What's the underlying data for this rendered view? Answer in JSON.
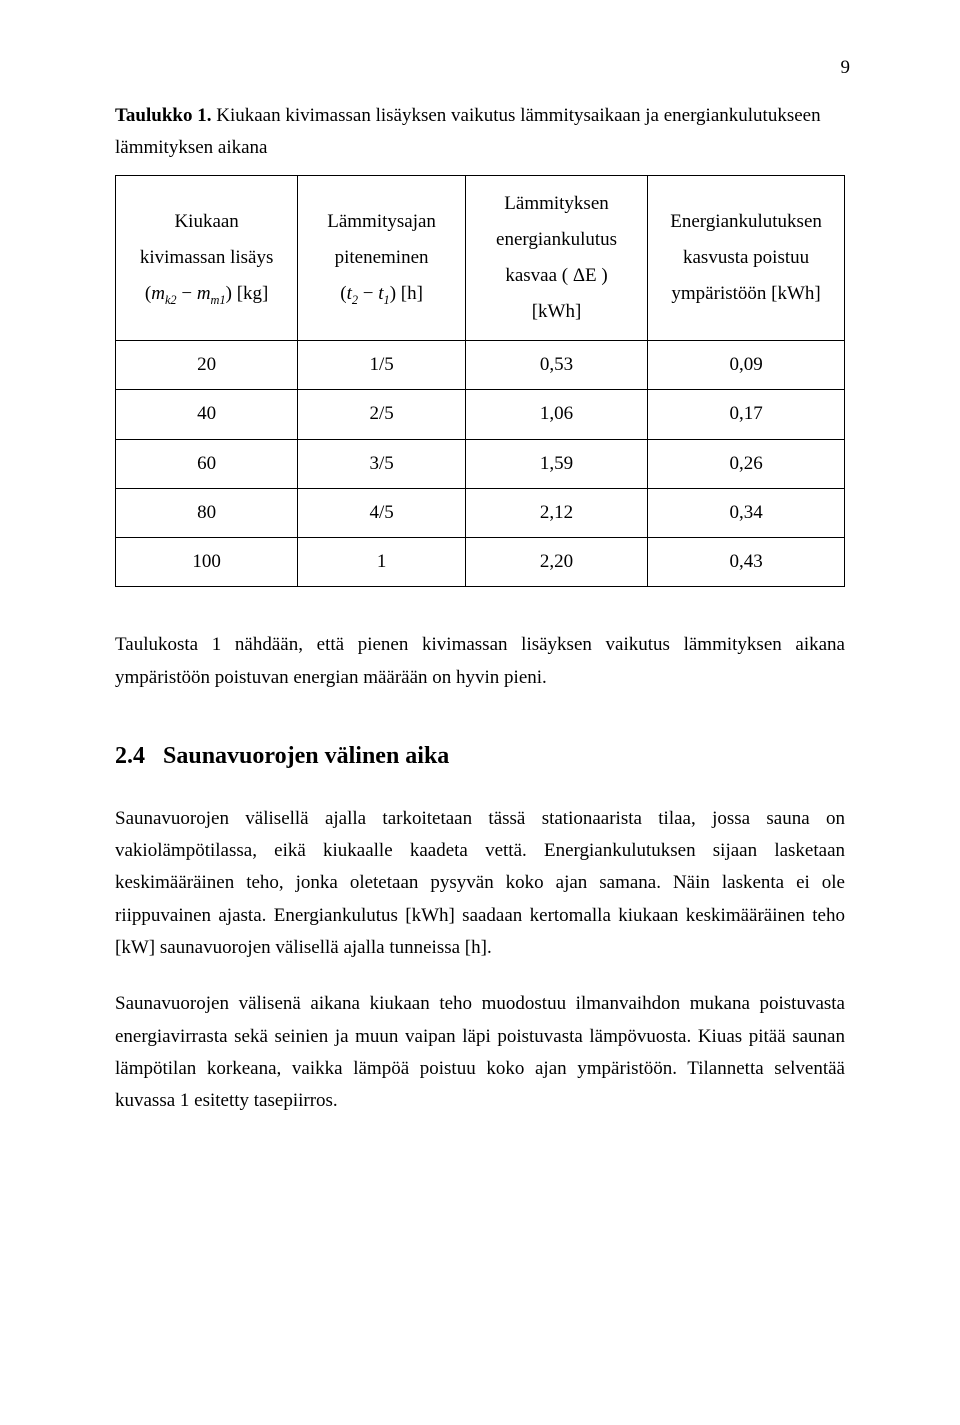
{
  "page_number": "9",
  "table_caption_bold": "Taulukko 1.",
  "table_caption_rest": " Kiukaan kivimassan lisäyksen vaikutus lämmitysaikaan ja energiankulutukseen lämmityksen aikana",
  "table": {
    "headers": {
      "c1_line1": "Kiukaan",
      "c1_line2": "kivimassan lisäys",
      "c1_line3_open": "(",
      "c1_line3_var1": "m",
      "c1_line3_sub1": "k2",
      "c1_line3_minus": " − ",
      "c1_line3_var2": "m",
      "c1_line3_sub2": "m1",
      "c1_line3_close": ") [kg]",
      "c2_line1": "Lämmitysajan",
      "c2_line2": "piteneminen",
      "c2_line3_open": "(",
      "c2_line3_var1": "t",
      "c2_line3_sub1": "2",
      "c2_line3_minus": " − ",
      "c2_line3_var2": "t",
      "c2_line3_sub2": "1",
      "c2_line3_close": ") [h]",
      "c3_line1": "Lämmityksen",
      "c3_line2": "energiankulutus",
      "c3_line3a": "kasvaa ( ",
      "c3_line3_delta": "ΔE",
      "c3_line3b": " )",
      "c3_line4": "[kWh]",
      "c4_line1": "Energiankulutuksen",
      "c4_line2": "kasvusta poistuu",
      "c4_line3": "ympäristöön [kWh]"
    },
    "rows": [
      [
        "20",
        "1/5",
        "0,53",
        "0,09"
      ],
      [
        "40",
        "2/5",
        "1,06",
        "0,17"
      ],
      [
        "60",
        "3/5",
        "1,59",
        "0,26"
      ],
      [
        "80",
        "4/5",
        "2,12",
        "0,34"
      ],
      [
        "100",
        "1",
        "2,20",
        "0,43"
      ]
    ],
    "col_widths": [
      "25%",
      "23%",
      "25%",
      "27%"
    ]
  },
  "para1": "Taulukosta 1 nähdään, että pienen kivimassan lisäyksen vaikutus lämmityksen aikana ympäristöön poistuvan energian määrään on hyvin pieni.",
  "section_num": "2.4",
  "section_title": "Saunavuorojen välinen aika",
  "para2": "Saunavuorojen välisellä ajalla tarkoitetaan tässä stationaarista tilaa, jossa sauna on vakiolämpötilassa, eikä kiukaalle kaadeta vettä. Energiankulutuksen sijaan lasketaan keskimääräinen teho, jonka oletetaan pysyvän koko ajan samana. Näin laskenta ei ole riippuvainen ajasta. Energiankulutus [kWh] saadaan kertomalla kiukaan keskimääräinen teho [kW] saunavuorojen välisellä ajalla tunneissa [h].",
  "para3": "Saunavuorojen välisenä aikana kiukaan teho muodostuu ilmanvaihdon mukana poistuvasta energiavirrasta sekä seinien ja muun vaipan läpi poistuvasta lämpövuosta. Kiuas pitää saunan lämpötilan korkeana, vaikka lämpöä poistuu koko ajan ympäristöön. Tilannetta selventää kuvassa 1 esitetty tasepiirros."
}
